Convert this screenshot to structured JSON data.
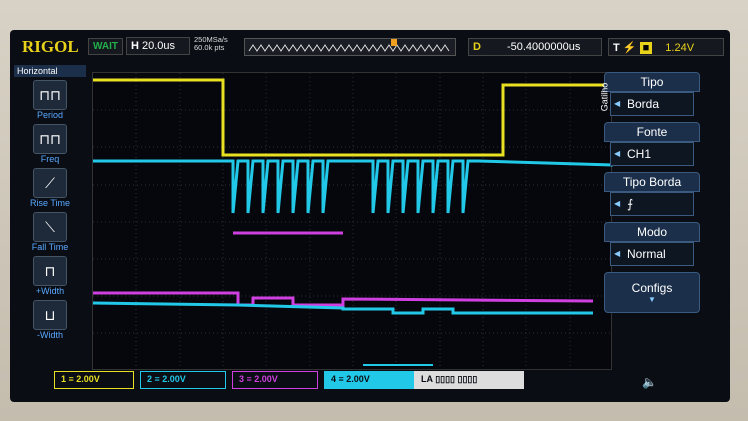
{
  "header": {
    "brand": "RIGOL",
    "status": "WAIT",
    "timebase_label": "H",
    "timebase": "20.0us",
    "sample_rate": "250MSa/s",
    "memory": "60.0k pts",
    "delay_label": "D",
    "delay": "-50.4000000us",
    "trigger_label": "T",
    "trigger_level": "1.24V"
  },
  "left_menu": {
    "title": "Horizontal",
    "items": [
      {
        "label": "Period",
        "icon": "period-icon"
      },
      {
        "label": "Freq",
        "icon": "freq-icon"
      },
      {
        "label": "Rise Time",
        "icon": "rise-time-icon"
      },
      {
        "label": "Fall Time",
        "icon": "fall-time-icon"
      },
      {
        "label": "+Width",
        "icon": "pos-width-icon"
      },
      {
        "label": "-Width",
        "icon": "neg-width-icon"
      }
    ]
  },
  "right_menu": {
    "side_label": "Gatilho",
    "items": [
      {
        "title": "Tipo",
        "value": "Borda"
      },
      {
        "title": "Fonte",
        "value": "CH1"
      },
      {
        "title": "Tipo Borda",
        "value": "⨍"
      },
      {
        "title": "Modo",
        "value": "Normal"
      }
    ],
    "more": "Configs"
  },
  "channels": [
    {
      "num": "1",
      "scale": "2.00V",
      "color": "#e8e020"
    },
    {
      "num": "2",
      "scale": "2.00V",
      "color": "#22c8e8"
    },
    {
      "num": "3",
      "scale": "2.00V",
      "color": "#d040e0"
    },
    {
      "num": "4",
      "scale": "2.00V",
      "color": "#22c8e8"
    }
  ],
  "la": {
    "label": "LA"
  }
}
